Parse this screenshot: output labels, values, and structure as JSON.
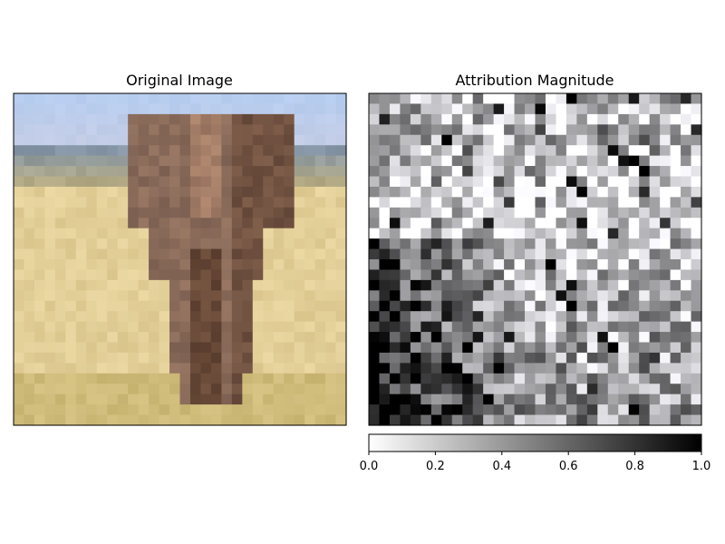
{
  "chart_data": [
    {
      "type": "image",
      "title": "Original Image",
      "rows": 32,
      "cols": 32,
      "description_colors": {
        "sky": "#b7cdef",
        "horizon": "#8696a6",
        "grass": "#e3cf98",
        "elephant": "#8a6b5a"
      },
      "axes_visible": false
    },
    {
      "type": "heatmap",
      "title": "Attribution Magnitude",
      "rows": 32,
      "cols": 32,
      "colormap": "gray_r",
      "vmin": 0.0,
      "vmax": 1.0,
      "axes_visible": false,
      "colorbar": {
        "orientation": "horizontal",
        "ticks": [
          0.0,
          0.2,
          0.4,
          0.6,
          0.8,
          1.0
        ],
        "tick_labels": [
          "0.0",
          "0.2",
          "0.4",
          "0.6",
          "0.8",
          "1.0"
        ]
      }
    }
  ]
}
